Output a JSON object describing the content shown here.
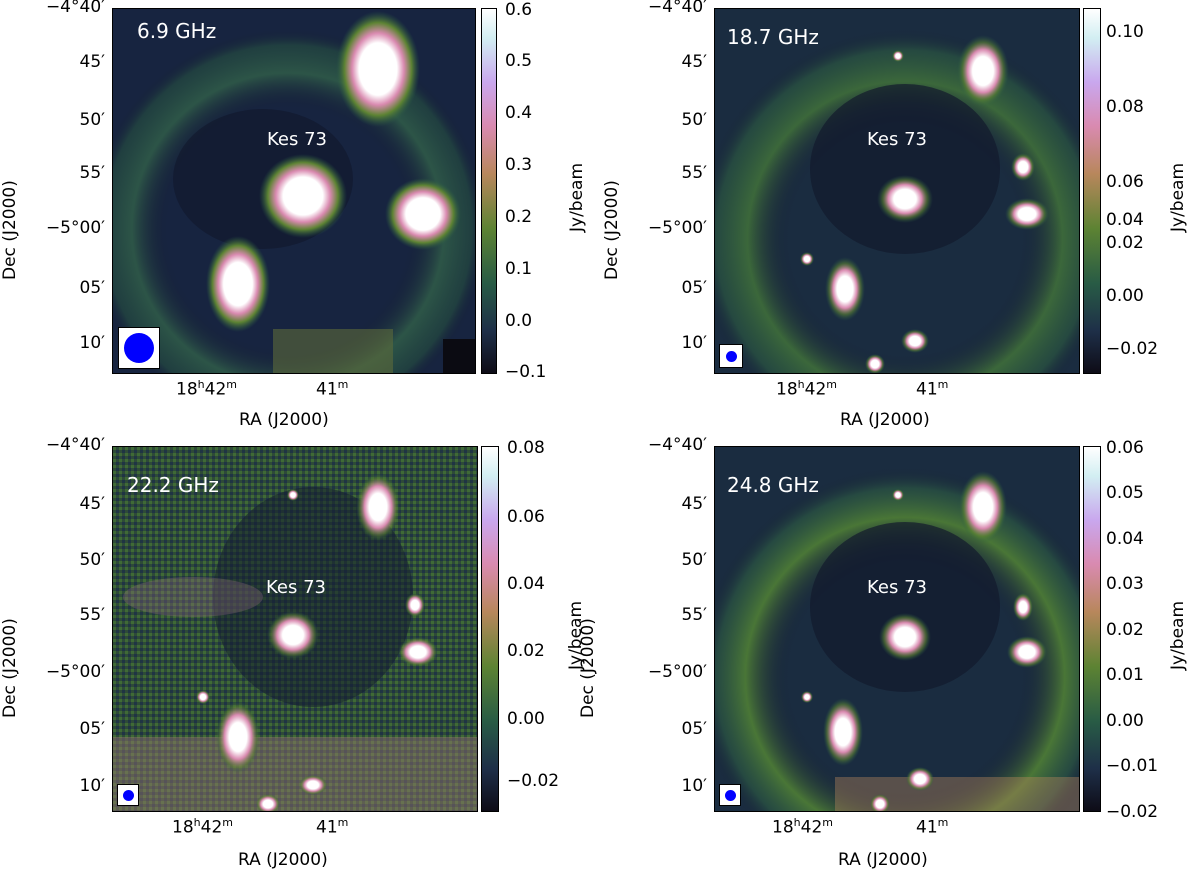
{
  "colorbar_colors": [
    "#0d0a14",
    "#1e2f48",
    "#285b45",
    "#5d8333",
    "#b8875c",
    "#d98ab0",
    "#c9a7ee",
    "#d2eef2",
    "#ffffff"
  ],
  "panels": [
    {
      "freq": "6.9 GHz",
      "source": "Kes 73",
      "dec_ticks": [
        "−4°40′",
        "45′",
        "50′",
        "55′",
        "−5°00′",
        "05′",
        "10′"
      ],
      "ra_ticks": [
        "18h42m",
        "41m"
      ],
      "ra_title": "RA (J2000)",
      "dec_title": "Dec (J2000)",
      "cbar_title": "Jy/beam",
      "cbar_ticks": [
        "0.6",
        "0.5",
        "0.4",
        "0.3",
        "0.2",
        "0.1",
        "0.0",
        "−0.1"
      ]
    },
    {
      "freq": "18.7 GHz",
      "source": "Kes 73",
      "dec_ticks": [
        "−4°40′",
        "45′",
        "50′",
        "55′",
        "−5°00′",
        "05′",
        "10′"
      ],
      "ra_ticks": [
        "18h42m",
        "41m"
      ],
      "ra_title": "RA (J2000)",
      "dec_title": "Dec (J2000)",
      "cbar_title": "Jy/beam",
      "cbar_ticks": [
        "0.10",
        "0.08",
        "0.06",
        "0.04",
        "0.02",
        "0.00",
        "−0.02"
      ]
    },
    {
      "freq": "22.2 GHz",
      "source": "Kes 73",
      "dec_ticks": [
        "−4°40′",
        "45′",
        "50′",
        "55′",
        "−5°00′",
        "05′",
        "10′"
      ],
      "ra_ticks": [
        "18h42m",
        "41m"
      ],
      "ra_title": "RA (J2000)",
      "dec_title": "Dec (J2000)",
      "cbar_title": "Jy/beam",
      "cbar_ticks": [
        "0.08",
        "0.06",
        "0.04",
        "0.02",
        "0.00",
        "−0.02"
      ]
    },
    {
      "freq": "24.8 GHz",
      "source": "Kes 73",
      "dec_ticks": [
        "−4°40′",
        "45′",
        "50′",
        "55′",
        "−5°00′",
        "05′",
        "10′"
      ],
      "ra_ticks": [
        "18h42m",
        "41m"
      ],
      "ra_title": "RA (J2000)",
      "dec_title": "Dec (J2000)",
      "cbar_title": "Jy/beam",
      "cbar_ticks": [
        "0.06",
        "0.05",
        "0.04",
        "0.03",
        "0.02",
        "0.01",
        "0.00",
        "−0.01",
        "−0.02"
      ]
    }
  ]
}
